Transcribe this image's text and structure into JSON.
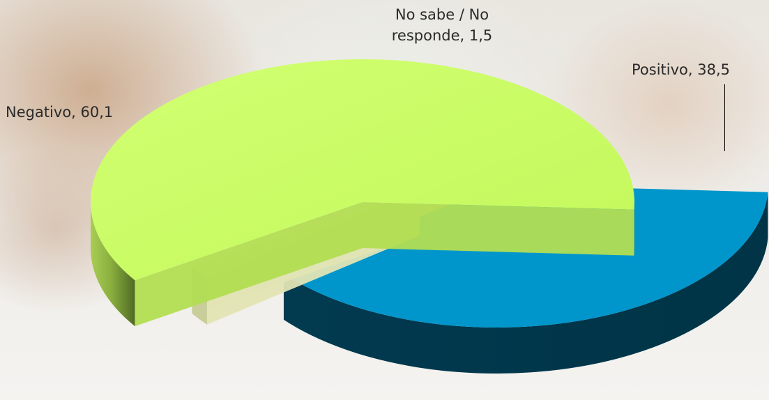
{
  "chart_data": {
    "type": "pie",
    "title": "",
    "style": "3d-exploded",
    "slices": [
      {
        "label": "Positivo",
        "value": 38.5,
        "color": "#0096cc",
        "side_color": "#003e55"
      },
      {
        "label": "No sabe / No responde",
        "value": 1.5,
        "color": "#f8f8c8",
        "side_color": "#c9cd9a"
      },
      {
        "label": "Negativo",
        "value": 60.1,
        "color": "#c8ff60",
        "side_color": "#7ea03c"
      }
    ],
    "data_labels": {
      "positivo": "Positivo, 38,5",
      "nsnr_line1": "No sabe / No",
      "nsnr_line2": "responde, 1,5",
      "negativo": "Negativo, 60,1"
    }
  }
}
